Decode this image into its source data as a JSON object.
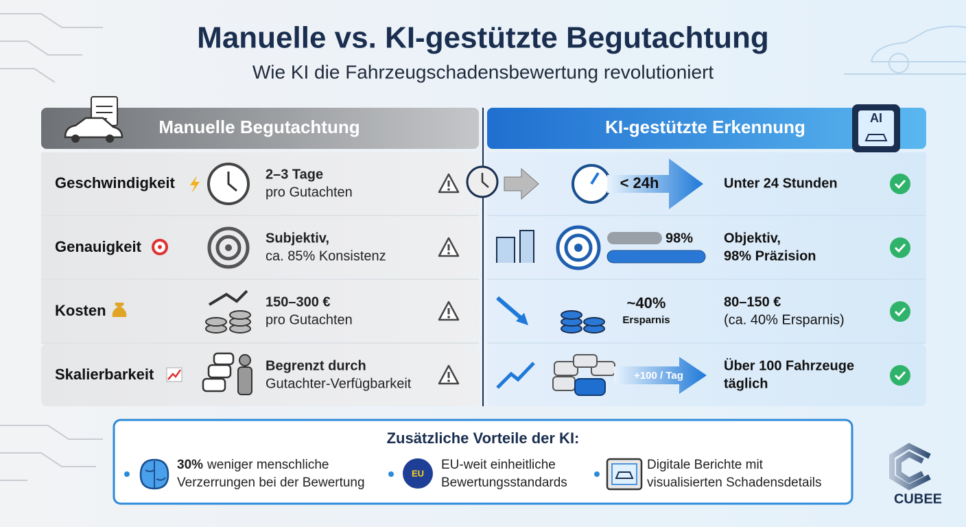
{
  "title": "Manuelle vs. KI-gestützte Begutachtung",
  "subtitle": "Wie KI die Fahrzeugschadensbewertung revolutioniert",
  "manual_header": "Manuelle Begutachtung",
  "ai_header": "KI-gestützte Erkennung",
  "ai_badge": "AI",
  "rows": [
    {
      "label": "Geschwindigkeit",
      "manual": [
        "2–3 Tage",
        "pro Gutachten"
      ],
      "ai_graphic": [
        "< 24h"
      ],
      "ai": [
        "Unter 24 Stunden"
      ]
    },
    {
      "label": "Genauigkeit",
      "manual": [
        "Subjektiv,",
        "ca. 85% Konsistenz"
      ],
      "ai_graphic": [
        "98%"
      ],
      "ai": [
        "Objektiv,",
        "98% Präzision"
      ]
    },
    {
      "label": "Kosten",
      "manual": [
        "150–300 €",
        "pro Gutachten"
      ],
      "ai_graphic": [
        "~40%",
        "Ersparnis"
      ],
      "ai": [
        "80–150 €",
        "(ca. 40% Ersparnis)"
      ]
    },
    {
      "label": "Skalierbarkeit",
      "manual": [
        "Begrenzt durch",
        "Gutachter-Verfügbarkeit"
      ],
      "ai_graphic": [
        "+100 / Tag"
      ],
      "ai": [
        "Über 100 Fahrzeuge",
        "täglich"
      ]
    }
  ],
  "benefits": {
    "title": "Zusätzliche Vorteile der KI:",
    "items": [
      {
        "highlight": "30%",
        "lines": [
          "weniger menschliche",
          "Verzerrungen bei der Bewertung"
        ]
      },
      {
        "icon_text": "EU",
        "lines": [
          "EU-weit einheitliche",
          "Bewertungsstandards"
        ]
      },
      {
        "lines": [
          "Digitale Berichte mit",
          "visualisierten Schadensdetails"
        ]
      }
    ]
  },
  "logo": "CUBEE"
}
